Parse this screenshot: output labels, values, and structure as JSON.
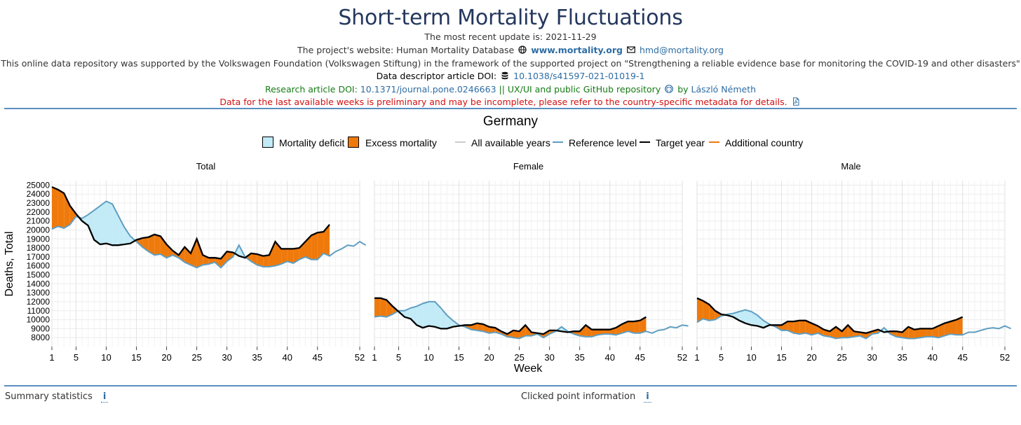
{
  "header": {
    "title": "Short-term Mortality Fluctuations",
    "update": "The most recent update is: 2021-11-29",
    "website_prefix": "The project's website: Human Mortality Database",
    "website_link": "www.mortality.org",
    "email": "hmd@mortality.org",
    "support": "This online data repository was supported by the Volkswagen Foundation (Volkswagen Stiftung) in the framework of the supported project on \"Strengthening a reliable evidence base for monitoring the COVID-19 and other disasters\"",
    "descriptor_label": "Data descriptor article DOI:",
    "descriptor_doi": "10.1038/s41597-021-01019-1",
    "research_label": "Research article DOI:",
    "research_doi": "10.1371/journal.pone.0246663",
    "repo_text": "|| UX/UI and public GitHub repository",
    "by": "by",
    "author": "László Németh",
    "warning": "Data for the last available weeks is preliminary and may be incomplete, please refer to the country-specific metadata for details."
  },
  "country": "Germany",
  "legend": {
    "deficit": "Mortality deficit",
    "excess": "Excess mortality",
    "all_years": "All available years",
    "reference": "Reference level",
    "target": "Target year",
    "additional": "Additional country"
  },
  "colors": {
    "deficit": "#c2ebf7",
    "excess": "#ef7a0c",
    "reference": "#5f9ec2",
    "target": "#000000",
    "all_years": "#cccccc",
    "additional": "#ef7a0c",
    "title": "#24375e",
    "link": "#2e6da4"
  },
  "chart_data": {
    "type": "area",
    "ylabel": "Deaths, Total",
    "xlabel": "Week",
    "x_ticks": [
      1,
      5,
      10,
      15,
      20,
      25,
      30,
      35,
      40,
      45,
      52
    ],
    "y_ticks": [
      8000,
      9000,
      10000,
      11000,
      12000,
      13000,
      14000,
      15000,
      16000,
      17000,
      18000,
      19000,
      20000,
      21000,
      22000,
      23000,
      24000,
      25000
    ],
    "ylim": [
      7000,
      25500
    ],
    "xlim": [
      1,
      52
    ],
    "grid": true,
    "panels": [
      {
        "name": "Total",
        "target": [
          24800,
          24500,
          24100,
          22700,
          21800,
          21000,
          20500,
          18900,
          18400,
          18500,
          18300,
          18300,
          18400,
          18500,
          18900,
          19100,
          19200,
          19500,
          19300,
          18400,
          17700,
          17200,
          18100,
          17400,
          19000,
          17200,
          16900,
          16900,
          16800,
          17600,
          17500,
          17100,
          16900,
          17400,
          17300,
          17100,
          17200,
          18700,
          17900,
          17900,
          17900,
          18000,
          18700,
          19400,
          19700,
          19800,
          20600
        ],
        "reference": [
          20100,
          20400,
          20200,
          20600,
          21500,
          21300,
          21700,
          22200,
          22700,
          23200,
          22900,
          21600,
          20300,
          19300,
          18700,
          18100,
          17600,
          17200,
          17300,
          16900,
          17200,
          16900,
          16400,
          16100,
          15800,
          16100,
          16200,
          16400,
          15800,
          16500,
          17000,
          18300,
          17000,
          16500,
          16100,
          15900,
          15900,
          16000,
          16200,
          16500,
          16300,
          16700,
          17000,
          16700,
          16700,
          17400,
          17100,
          17600,
          17900,
          18300,
          18200,
          18700,
          18300
        ]
      },
      {
        "name": "Female",
        "target": [
          12400,
          12400,
          12200,
          11500,
          10900,
          10300,
          10100,
          9400,
          9100,
          9300,
          9200,
          9000,
          9000,
          9200,
          9300,
          9400,
          9400,
          9600,
          9500,
          9200,
          9100,
          8700,
          8400,
          8800,
          8700,
          9400,
          8600,
          8500,
          8400,
          8800,
          8800,
          8700,
          8600,
          8700,
          8700,
          9400,
          8900,
          8900,
          8900,
          8900,
          9100,
          9500,
          9800,
          9800,
          9900,
          10300
        ],
        "reference": [
          10300,
          10400,
          10300,
          10600,
          11000,
          11000,
          11300,
          11500,
          11800,
          12000,
          12000,
          11300,
          10500,
          9900,
          9400,
          9200,
          8900,
          8800,
          8700,
          8500,
          8600,
          8400,
          8100,
          8000,
          7900,
          8200,
          8200,
          8400,
          8000,
          8400,
          8700,
          9200,
          8700,
          8400,
          8200,
          8100,
          8100,
          8300,
          8400,
          8400,
          8300,
          8500,
          8700,
          8500,
          8500,
          8700,
          8500,
          8800,
          8900,
          9200,
          9100,
          9400,
          9300
        ]
      },
      {
        "name": "Male",
        "target": [
          12400,
          12100,
          11700,
          11000,
          10600,
          10500,
          10300,
          9900,
          9600,
          9400,
          9300,
          9100,
          9400,
          9400,
          9400,
          9800,
          9800,
          9900,
          9900,
          9600,
          9300,
          8900,
          8700,
          9200,
          8700,
          9400,
          8700,
          8600,
          8500,
          8700,
          8900,
          8600,
          8700,
          8700,
          8600,
          9200,
          8900,
          9000,
          9000,
          9000,
          9300,
          9600,
          9800,
          10000,
          10300
        ],
        "reference": [
          9700,
          10100,
          9900,
          10000,
          10400,
          10600,
          10700,
          10900,
          11100,
          10900,
          10500,
          9900,
          9500,
          9200,
          8800,
          8800,
          8500,
          8400,
          8500,
          8300,
          8500,
          8200,
          8100,
          7900,
          8000,
          8000,
          8100,
          8200,
          7900,
          8400,
          8500,
          9100,
          8400,
          8100,
          8000,
          7900,
          7900,
          8000,
          8100,
          8100,
          8000,
          8200,
          8400,
          8300,
          8300,
          8600,
          8600,
          8800,
          9000,
          9100,
          9000,
          9300,
          9000
        ]
      }
    ]
  },
  "footer": {
    "summary": "Summary statistics",
    "clicked": "Clicked point information",
    "info_icon": "i"
  }
}
